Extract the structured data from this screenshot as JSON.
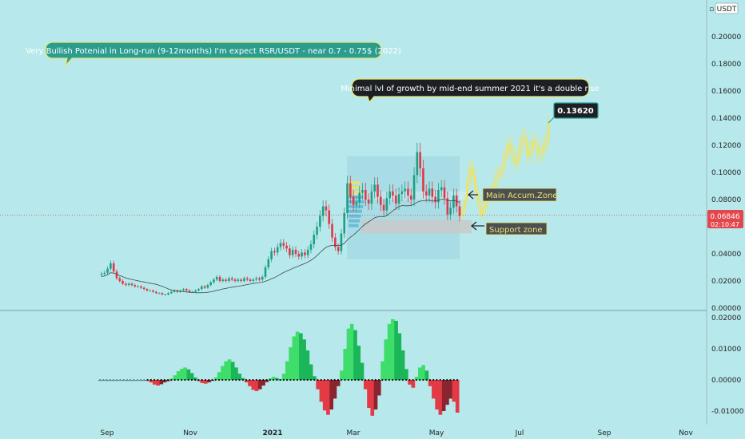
{
  "currency_badge": "USDT",
  "price_tag": {
    "price": "0.06846",
    "countdown": "02:10:47",
    "value": 0.06846
  },
  "target_tag": {
    "label": "0.13620",
    "value": 0.1362
  },
  "annotations": {
    "long_run": "Very Bullish Potenial in Long-run (9-12months) I'm expect RSR/USDT - near 0.7 - 0.75$ (2022)",
    "summer": "Minimal lvl of growth by mid-end summer 2021 it's a double rise",
    "main_zone": "Main Accum.Zone",
    "support_zone": "Support zone"
  },
  "colors": {
    "background": "#b7e9ec",
    "up_candle": "#1f9e83",
    "down_candle": "#e0374a",
    "projection": "#ece36a",
    "callout_green": "#2a9d8f",
    "callout_dark": "#1c1f24",
    "price_red": "#e2474b",
    "osc_green_strong": "#1bb65a",
    "osc_green_light": "#3fdd6a",
    "osc_red": "#e43a45"
  },
  "chart_data": [
    {
      "type": "line",
      "subtype": "candlestick",
      "pair": "RSR/USDT",
      "x_ticks": [
        "Sep",
        "Nov",
        "2021",
        "Mar",
        "May",
        "Jul",
        "Sep",
        "Nov"
      ],
      "y_ticks": [
        "0.20000",
        "0.18000",
        "0.16000",
        "0.14000",
        "0.12000",
        "0.10000",
        "0.08000",
        "0.04000",
        "0.02000",
        "0.00000"
      ],
      "ylim": [
        0,
        0.2
      ],
      "series": [
        {
          "close": [
            0.0253,
            0.026,
            0.029,
            0.033,
            0.027,
            0.022,
            0.02,
            0.018,
            0.017,
            0.018,
            0.017,
            0.016,
            0.016,
            0.015,
            0.014,
            0.013,
            0.013,
            0.012,
            0.011,
            0.011,
            0.01,
            0.01,
            0.011,
            0.012,
            0.013,
            0.012,
            0.013,
            0.014,
            0.013,
            0.012,
            0.012,
            0.013,
            0.014,
            0.016,
            0.015,
            0.017,
            0.019,
            0.021,
            0.023,
            0.02,
            0.021,
            0.02,
            0.022,
            0.021,
            0.02,
            0.021,
            0.02,
            0.022,
            0.021,
            0.02,
            0.021,
            0.022,
            0.021,
            0.023,
            0.03,
            0.036,
            0.042,
            0.041,
            0.045,
            0.048,
            0.046,
            0.044,
            0.039,
            0.043,
            0.04,
            0.038,
            0.041,
            0.039,
            0.043,
            0.047,
            0.054,
            0.06,
            0.068,
            0.075,
            0.072,
            0.062,
            0.052,
            0.045,
            0.042,
            0.055,
            0.07,
            0.092,
            0.082,
            0.076,
            0.078,
            0.085,
            0.087,
            0.08,
            0.077,
            0.086,
            0.091,
            0.082,
            0.076,
            0.072,
            0.081,
            0.086,
            0.083,
            0.077,
            0.084,
            0.086,
            0.088,
            0.083,
            0.08,
            0.098,
            0.115,
            0.103,
            0.086,
            0.083,
            0.088,
            0.082,
            0.078,
            0.087,
            0.089,
            0.081,
            0.069,
            0.074,
            0.083,
            0.075,
            0.068
          ],
          "open_spacing_days": 2.5
        }
      ],
      "projection": [
        0.072,
        0.08,
        0.093,
        0.104,
        0.098,
        0.086,
        0.078,
        0.069,
        0.073,
        0.078,
        0.083,
        0.086,
        0.09,
        0.098,
        0.101,
        0.1,
        0.112,
        0.118,
        0.121,
        0.113,
        0.107,
        0.11,
        0.119,
        0.126,
        0.123,
        0.112,
        0.117,
        0.123,
        0.121,
        0.113,
        0.115,
        0.119,
        0.123,
        0.136
      ],
      "main_accum_zone": [
        0.08,
        0.086
      ],
      "support_zone": [
        0.055,
        0.065
      ],
      "current_price": 0.06846,
      "target_price": 0.1362
    },
    {
      "type": "bar",
      "name": "oscillator",
      "y_ticks": [
        "0.02000",
        "0.01000",
        "0.00000",
        "-0.01000"
      ],
      "ylim": [
        -0.0125,
        0.0205
      ],
      "values": [
        0,
        0,
        0,
        0,
        0,
        0,
        0,
        0,
        0,
        0,
        0,
        0,
        0,
        0,
        -0.0003,
        -0.0008,
        -0.0015,
        -0.0018,
        -0.0014,
        -0.0008,
        -0.0004,
        0.0004,
        0.0015,
        0.0028,
        0.0036,
        0.004,
        0.0034,
        0.0022,
        0.0008,
        -0.0004,
        -0.001,
        -0.0012,
        -0.0008,
        -0.0003,
        0.0008,
        0.0025,
        0.0045,
        0.006,
        0.0066,
        0.0058,
        0.004,
        0.002,
        0.0006,
        -0.0008,
        -0.002,
        -0.0032,
        -0.0036,
        -0.003,
        -0.0018,
        -0.0007,
        0.0005,
        0.001,
        0.0006,
        0.0002,
        0.002,
        0.006,
        0.0105,
        0.014,
        0.0155,
        0.015,
        0.013,
        0.0095,
        0.005,
        0.0012,
        -0.003,
        -0.007,
        -0.0098,
        -0.0112,
        -0.0095,
        -0.006,
        -0.002,
        0.003,
        0.01,
        0.0165,
        0.018,
        0.016,
        0.011,
        0.0055,
        -0.003,
        -0.009,
        -0.0115,
        -0.0095,
        -0.005,
        0.006,
        0.013,
        0.018,
        0.0195,
        0.019,
        0.015,
        0.0095,
        0.0035,
        -0.0015,
        -0.0025,
        0.001,
        0.004,
        0.0048,
        0.003,
        -0.002,
        -0.006,
        -0.0095,
        -0.0112,
        -0.01,
        -0.008,
        -0.006,
        -0.007,
        -0.0105
      ]
    }
  ]
}
